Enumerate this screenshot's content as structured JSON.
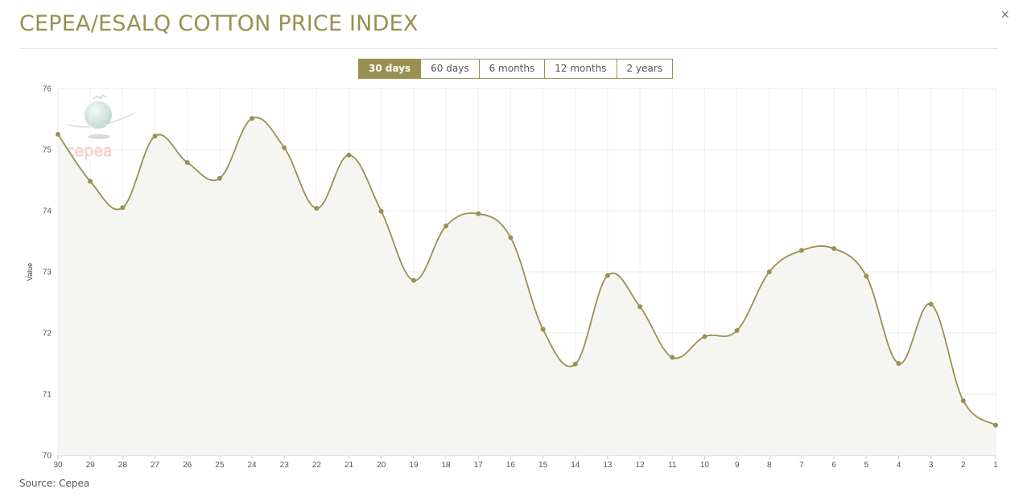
{
  "header": {
    "title": "CEPEA/ESALQ COTTON PRICE INDEX",
    "close_label": "×"
  },
  "ranges": [
    {
      "label": "30 days",
      "active": true
    },
    {
      "label": "60 days",
      "active": false
    },
    {
      "label": "6 months",
      "active": false
    },
    {
      "label": "12 months",
      "active": false
    },
    {
      "label": "2 years",
      "active": false
    }
  ],
  "logo": {
    "text": "cepea"
  },
  "footer": {
    "source": "Source: Cepea"
  },
  "colors": {
    "accent": "#999052",
    "fill": "#f5f5f1",
    "grid": "#eeeeee"
  },
  "chart_data": {
    "type": "area",
    "ylabel": "Value",
    "xlabel": "",
    "ylim": [
      70,
      76
    ],
    "yticks": [
      70,
      71,
      72,
      73,
      74,
      75,
      76
    ],
    "grid": true,
    "categories": [
      "30",
      "29",
      "28",
      "27",
      "26",
      "25",
      "24",
      "23",
      "22",
      "21",
      "20",
      "19",
      "18",
      "17",
      "16",
      "15",
      "14",
      "13",
      "12",
      "11",
      "10",
      "9",
      "8",
      "7",
      "6",
      "5",
      "4",
      "3",
      "2",
      "1"
    ],
    "series": [
      {
        "values": [
          75.25,
          74.48,
          74.05,
          75.22,
          74.79,
          74.53,
          75.51,
          75.03,
          74.04,
          74.91,
          73.99,
          72.86,
          73.75,
          73.95,
          73.56,
          72.06,
          71.49,
          72.94,
          72.43,
          71.6,
          71.94,
          72.04,
          73.0,
          73.35,
          73.38,
          72.93,
          71.5,
          72.47,
          70.89,
          70.49
        ]
      }
    ]
  }
}
